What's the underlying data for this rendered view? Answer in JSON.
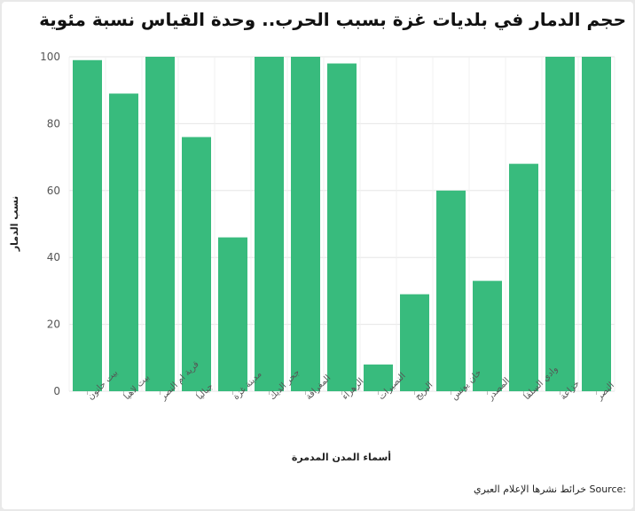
{
  "title": "حجم الدمار في بلديات غزة بسبب الحرب.. وحدة القياس نسبة مئوية",
  "source_label": "Source:",
  "source_text": "خرائط نشرها الإعلام العبري",
  "colors": {
    "bar": "#38bb7d",
    "grid": "#e6e6e6",
    "axis_text": "#555555"
  },
  "chart_data": {
    "type": "bar",
    "title": "حجم الدمار في بلديات غزة بسبب الحرب.. وحدة القياس نسبة مئوية",
    "xlabel": "أسماء المدن المدمرة",
    "ylabel": "نسب الدمار",
    "ylim": [
      0,
      100
    ],
    "yticks": [
      0,
      20,
      40,
      60,
      80,
      100
    ],
    "grid": true,
    "categories": [
      "بيت حانون",
      "بيت لاهيا",
      "قرية ام النصر",
      "جباليا",
      "مدينة غزة",
      "جحر الديك",
      "المغراقة",
      "الزهراء",
      "النصيرات",
      "البريج",
      "خان يونس",
      "المصدر",
      "وادي السلقا",
      "خزاعة",
      "النصر"
    ],
    "values": [
      99,
      89,
      100,
      76,
      46,
      100,
      100,
      98,
      8,
      29,
      60,
      33,
      68,
      100,
      100
    ]
  }
}
